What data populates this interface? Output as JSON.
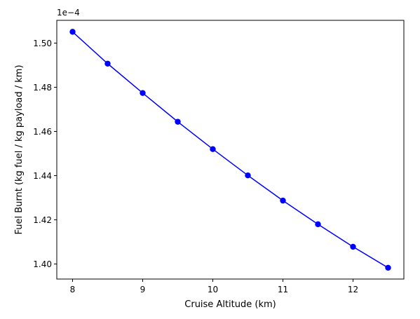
{
  "chart_data": {
    "type": "line",
    "title": "",
    "xlabel": "Cruise Altitude (km)",
    "ylabel": "Fuel Burnt (kg fuel / kg payload / km)",
    "offset_label": "1e−4",
    "xlim": [
      7.775,
      12.725
    ],
    "ylim": [
      1.3932,
      1.5103
    ],
    "x_ticks": [
      8,
      9,
      10,
      11,
      12
    ],
    "x_tick_labels": [
      "8",
      "9",
      "10",
      "11",
      "12"
    ],
    "y_ticks": [
      1.4,
      1.42,
      1.44,
      1.46,
      1.48,
      1.5
    ],
    "y_tick_labels": [
      "1.40",
      "1.42",
      "1.44",
      "1.46",
      "1.48",
      "1.50"
    ],
    "grid": false,
    "series": [
      {
        "color": "#0000ff",
        "marker": "circle",
        "x": [
          8,
          8.5,
          9,
          9.5,
          10,
          10.5,
          11,
          11.5,
          12,
          12.5
        ],
        "y": [
          1.5051,
          1.4907,
          1.4774,
          1.4644,
          1.452,
          1.4401,
          1.4287,
          1.418,
          1.4078,
          1.3983
        ]
      }
    ]
  }
}
